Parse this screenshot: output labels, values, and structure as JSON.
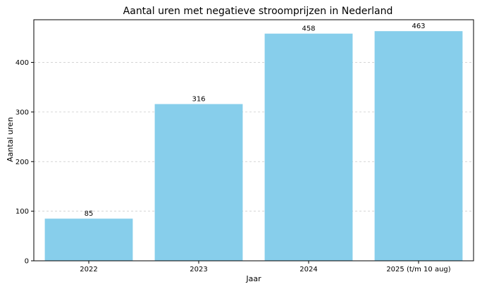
{
  "chart_data": {
    "type": "bar",
    "title": "Aantal uren met negatieve stroomprijzen in Nederland",
    "xlabel": "Jaar",
    "ylabel": "Aantal uren",
    "categories": [
      "2022",
      "2023",
      "2024",
      "2025 (t/m 10 aug)"
    ],
    "values": [
      85,
      316,
      458,
      463
    ],
    "data_labels": [
      "85",
      "316",
      "458",
      "463"
    ],
    "ylim": [
      0,
      486
    ],
    "yticks": [
      0,
      100,
      200,
      300,
      400
    ],
    "grid": "y-dashed",
    "bar_color": "#87CEEB"
  }
}
